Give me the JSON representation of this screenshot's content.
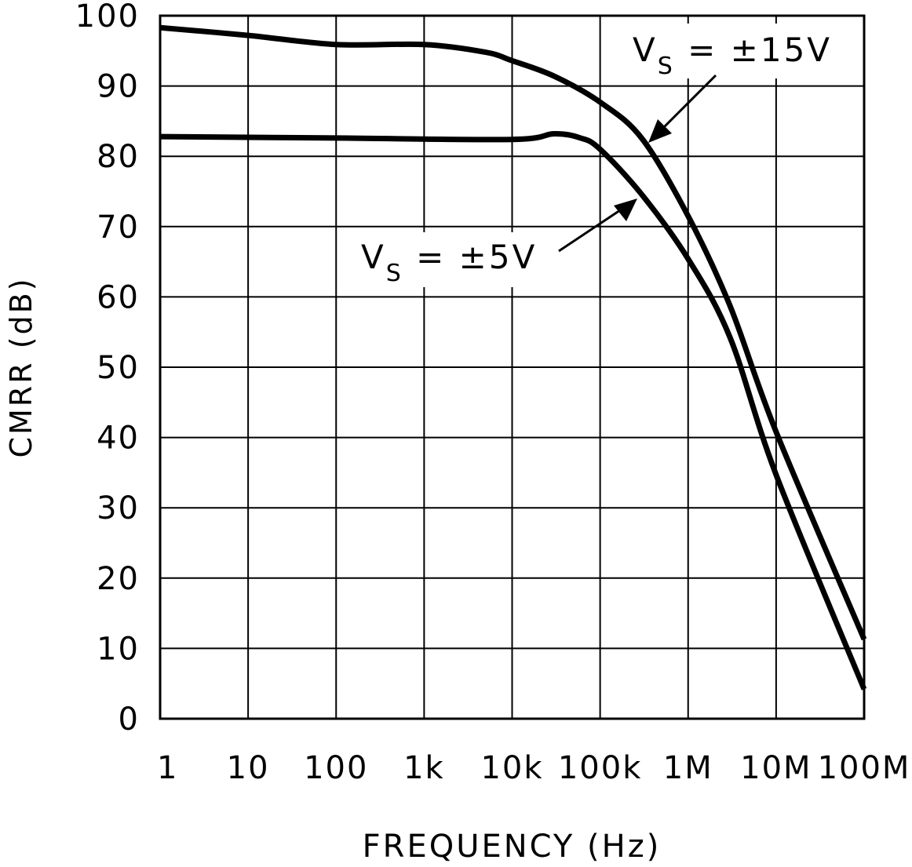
{
  "chart_data": {
    "type": "line",
    "title": "",
    "xlabel": "FREQUENCY (Hz)",
    "ylabel": "CMRR (dB)",
    "xscale": "log",
    "xlim": [
      1,
      100000000
    ],
    "ylim": [
      0,
      100
    ],
    "grid": true,
    "x_ticks": [
      1,
      10,
      100,
      1000,
      10000,
      100000,
      1000000,
      10000000,
      100000000
    ],
    "x_tick_labels": [
      "1",
      "10",
      "100",
      "1k",
      "10k",
      "100k",
      "1M",
      "10M",
      "100M"
    ],
    "y_ticks": [
      0,
      10,
      20,
      30,
      40,
      50,
      60,
      70,
      80,
      90,
      100
    ],
    "y_tick_labels": [
      "0",
      "10",
      "20",
      "30",
      "40",
      "50",
      "60",
      "70",
      "80",
      "90",
      "100"
    ],
    "line_color": "#000000",
    "series": [
      {
        "name": "VS = ±15V",
        "label_main": "V",
        "label_sub": "S",
        "label_rest": " = ±15V",
        "x": [
          1,
          10,
          100,
          1000,
          5000,
          10000,
          30000,
          100000,
          300000,
          1000000,
          3000000,
          10000000,
          100000000
        ],
        "y": [
          98.3,
          97.2,
          95.9,
          95.9,
          94.8,
          93.6,
          91.4,
          87.7,
          82.5,
          71.5,
          58.7,
          40.8,
          11.3
        ]
      },
      {
        "name": "VS = ±5V",
        "label_main": "V",
        "label_sub": "S",
        "label_rest": " = ±5V",
        "x": [
          1,
          100,
          10000,
          30000,
          60000,
          100000,
          300000,
          1000000,
          3000000,
          10000000,
          100000000
        ],
        "y": [
          82.8,
          82.6,
          82.4,
          83.2,
          82.6,
          81.0,
          74.5,
          65.4,
          54.2,
          34.7,
          4.2
        ]
      }
    ]
  }
}
